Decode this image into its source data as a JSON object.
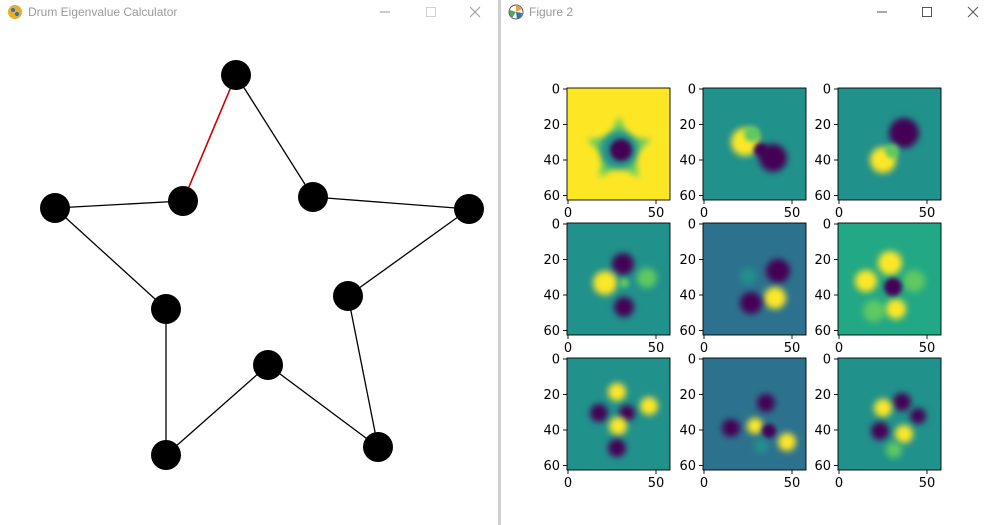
{
  "left_window": {
    "title": "Drum Eigenvalue Calculator",
    "app_icon": "python-snake-icon",
    "controls": [
      "minimize-icon",
      "maximize-icon",
      "close-icon"
    ],
    "star": {
      "vertex_count": 10,
      "edge_color": "#000000",
      "active_edge_color": "#cc0000",
      "node_color": "#000000"
    }
  },
  "right_window": {
    "title": "Figure 2",
    "app_icon": "matplotlib-icon",
    "controls": [
      "minimize-icon",
      "maximize-icon",
      "close-icon"
    ],
    "figure": {
      "rows": 3,
      "cols": 3,
      "y_ticks": [
        "0",
        "20",
        "40",
        "60"
      ],
      "x_ticks": [
        "0",
        "50"
      ],
      "colormap": "viridis",
      "colors": {
        "yellow": "#fde725",
        "purple": "#440154",
        "teal": "#21918c",
        "green": "#22a884",
        "dark_teal": "#2c728e",
        "light_green": "#5ec962"
      },
      "modes": [
        {
          "name": "mode-1",
          "background": "#fde725"
        },
        {
          "name": "mode-2",
          "background": "#21918c"
        },
        {
          "name": "mode-3",
          "background": "#21918c"
        },
        {
          "name": "mode-4",
          "background": "#21918c"
        },
        {
          "name": "mode-5",
          "background": "#2c728e"
        },
        {
          "name": "mode-6",
          "background": "#22a884"
        },
        {
          "name": "mode-7",
          "background": "#21918c"
        },
        {
          "name": "mode-8",
          "background": "#2c728e"
        },
        {
          "name": "mode-9",
          "background": "#21918c"
        }
      ]
    }
  }
}
